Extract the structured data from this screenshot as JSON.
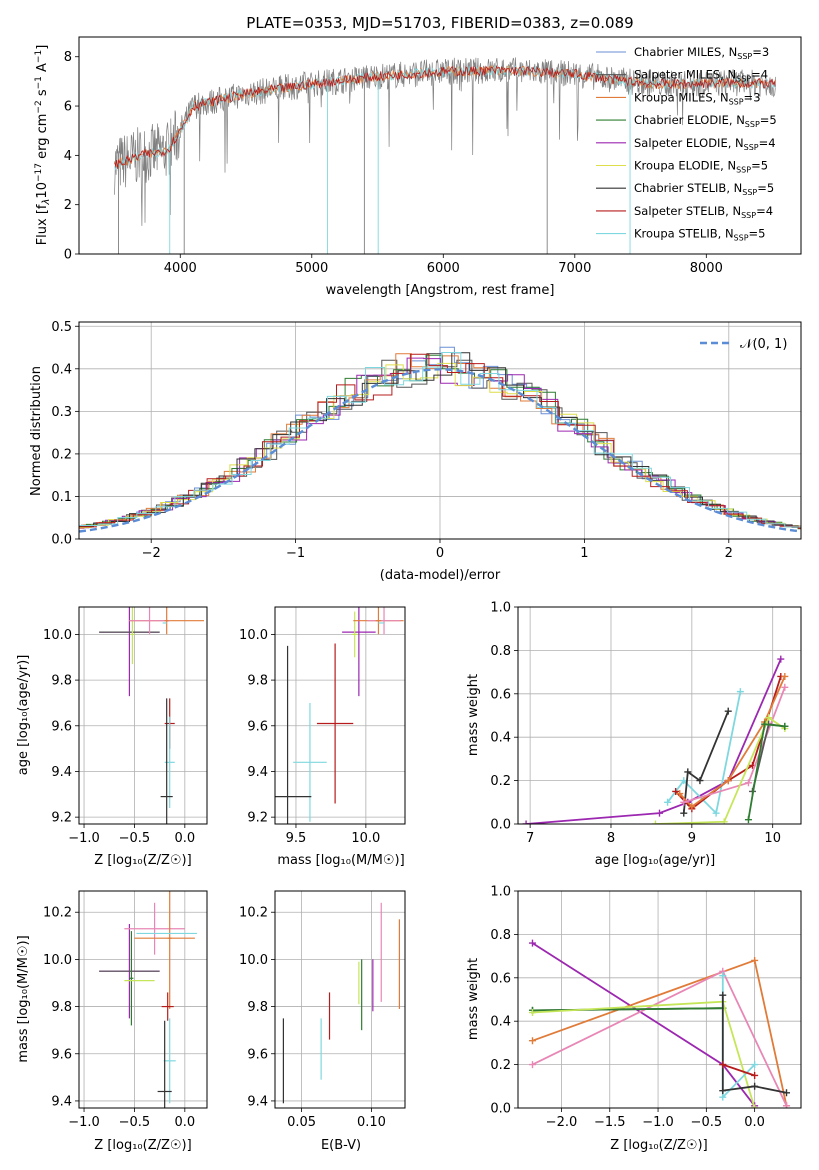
{
  "colors": {
    "Chabrier MILES": "#6a8fd6",
    "Salpeter MILES": "#555555",
    "Kroupa MILES": "#e07b39",
    "Chabrier ELODIE": "#2e7d32",
    "Salpeter ELODIE": "#9c27b0",
    "Kroupa ELODIE": "#dede4a",
    "Chabrier STELIB": "#333333",
    "Salpeter STELIB": "#b71c1c",
    "Kroupa STELIB": "#7fd8df",
    "pink": "#e887b5",
    "lime": "#c6e65a",
    "grid": "#b0b0b0",
    "spectrum": "#808080",
    "normal_curve": "#5b8dd6"
  },
  "chart_data": [
    {
      "id": "spectrum",
      "type": "line",
      "title": "PLATE=0353, MJD=51703, FIBERID=0383, z=0.089",
      "xlabel": "wavelength [Angstrom, rest frame]",
      "ylabel_main": "Flux [f",
      "ylabel_sub": "λ",
      "ylabel_rest": "10",
      "ylabel_rest_sup": "−17",
      "ylabel_tail": " erg cm",
      "ylabel_tail_sup": "−2",
      "ylabel_tail2": " s",
      "ylabel_tail2_sup": "−1",
      "ylabel_tail3": " A",
      "ylabel_tail3_sup": "−1",
      "ylabel_close": "]",
      "xlim": [
        3230,
        8720
      ],
      "ylim": [
        0,
        8.8
      ],
      "xticks": [
        4000,
        5000,
        6000,
        7000,
        8000
      ],
      "yticks": [
        0,
        2,
        4,
        6,
        8
      ],
      "continuum": [
        [
          3500,
          3.6
        ],
        [
          3700,
          4.0
        ],
        [
          3900,
          4.2
        ],
        [
          4000,
          5.0
        ],
        [
          4100,
          6.0
        ],
        [
          4500,
          6.5
        ],
        [
          5000,
          6.9
        ],
        [
          5500,
          7.2
        ],
        [
          6000,
          7.4
        ],
        [
          6500,
          7.45
        ],
        [
          7000,
          7.3
        ],
        [
          7400,
          7.0
        ],
        [
          7600,
          6.9
        ],
        [
          7900,
          6.9
        ],
        [
          8200,
          6.95
        ],
        [
          8530,
          6.9
        ]
      ],
      "legend": [
        {
          "name": "Chabrier MILES",
          "nssp": "3"
        },
        {
          "name": "Salpeter MILES",
          "nssp": "4"
        },
        {
          "name": "Kroupa MILES",
          "nssp": "3"
        },
        {
          "name": "Chabrier ELODIE",
          "nssp": "5"
        },
        {
          "name": "Salpeter ELODIE",
          "nssp": "4"
        },
        {
          "name": "Kroupa ELODIE",
          "nssp": "5"
        },
        {
          "name": "Chabrier STELIB",
          "nssp": "5"
        },
        {
          "name": "Salpeter STELIB",
          "nssp": "4"
        },
        {
          "name": "Kroupa STELIB",
          "nssp": "5"
        }
      ],
      "legend_nssp_prefix": "N",
      "legend_nssp_sub": "SSP",
      "legend_placement": "right"
    },
    {
      "id": "residuals",
      "type": "histogram",
      "xlabel": "(data-model)/error",
      "ylabel": "Normed distribution",
      "xlim": [
        -2.5,
        2.5
      ],
      "ylim": [
        0,
        0.51
      ],
      "xticks": [
        -2,
        -1,
        0,
        1,
        2
      ],
      "xticklabels": [
        "−2",
        "−1",
        "0",
        "1",
        "2"
      ],
      "yticks": [
        0,
        0.1,
        0.2,
        0.3,
        0.4,
        0.5
      ],
      "yticklabels": [
        "0.0",
        "0.1",
        "0.2",
        "0.3",
        "0.4",
        "0.5"
      ],
      "grid": true,
      "legend": "𝒩(0, 1)",
      "legend_placement": "top-right"
    },
    {
      "id": "age_vs_Z",
      "type": "errorbar",
      "xlabel": "Z [log₁₀(Z/Z☉)]",
      "ylabel": "age  [log₁₀(age/yr)]",
      "xlim": [
        -1.05,
        0.22
      ],
      "ylim": [
        9.17,
        10.12
      ],
      "xticks": [
        -1.0,
        -0.5,
        0.0
      ],
      "xticklabels": [
        "−1.0",
        "−0.5",
        "0.0"
      ],
      "yticks": [
        9.2,
        9.4,
        9.6,
        9.8,
        10.0
      ],
      "yticklabels": [
        "9.2",
        "9.4",
        "9.6",
        "9.8",
        "10.0"
      ],
      "points": [
        {
          "c": "Salpeter ELODIE",
          "x": -0.55,
          "xe": 0.3,
          "y": 10.01,
          "ye": 0.28
        },
        {
          "c": "Salpeter MILES",
          "x": -0.55,
          "xe": 0.3,
          "y": 10.01,
          "ye": 0.0
        },
        {
          "c": "lime",
          "x": -0.52,
          "xe": 0.02,
          "y": 10.0,
          "ye": 0.13
        },
        {
          "c": "Kroupa MILES",
          "x": -0.18,
          "xe": 0.37,
          "y": 10.06,
          "ye": 0.0
        },
        {
          "c": "pink",
          "x": -0.35,
          "xe": 0.2,
          "y": 10.06,
          "ye": 0.06
        },
        {
          "c": "Kroupa MILES",
          "x": -0.18,
          "xe": 0.02,
          "y": 10.06,
          "ye": 0.06
        },
        {
          "c": "Kroupa STELIB",
          "x": -0.2,
          "xe": 0.02,
          "y": 10.05,
          "ye": 0.0
        },
        {
          "c": "Salpeter STELIB",
          "x": -0.15,
          "xe": 0.05,
          "y": 9.61,
          "ye": 0.11
        },
        {
          "c": "Kroupa STELIB",
          "x": -0.15,
          "xe": 0.05,
          "y": 9.44,
          "ye": 0.2
        },
        {
          "c": "Chabrier STELIB",
          "x": -0.18,
          "xe": 0.06,
          "y": 9.29,
          "ye": 0.43
        }
      ]
    },
    {
      "id": "age_vs_mass",
      "type": "errorbar",
      "xlabel": "mass [log₁₀(M/M☉)]",
      "ylabel": "",
      "xlim": [
        9.35,
        10.28
      ],
      "ylim": [
        9.17,
        10.12
      ],
      "xticks": [
        9.5,
        10.0
      ],
      "xticklabels": [
        "9.5",
        "10.0"
      ],
      "yticks": [
        9.2,
        9.4,
        9.6,
        9.8,
        10.0
      ],
      "yticklabels": [
        "9.2",
        "9.4",
        "9.6",
        "9.8",
        "10.0"
      ],
      "points": [
        {
          "c": "Salpeter ELODIE",
          "x": 9.95,
          "xe": 0.12,
          "y": 10.01,
          "ye": 0.28
        },
        {
          "c": "lime",
          "x": 9.92,
          "xe": 0.02,
          "y": 10.0,
          "ye": 0.1
        },
        {
          "c": "Kroupa MILES",
          "x": 10.09,
          "xe": 0.18,
          "y": 10.06,
          "ye": 0.0
        },
        {
          "c": "pink",
          "x": 10.13,
          "xe": 0.12,
          "y": 10.06,
          "ye": 0.06
        },
        {
          "c": "Kroupa MILES",
          "x": 10.09,
          "xe": 0.02,
          "y": 10.06,
          "ye": 0.06
        },
        {
          "c": "Kroupa STELIB",
          "x": 10.11,
          "xe": 0.02,
          "y": 10.05,
          "ye": 0.0
        },
        {
          "c": "Salpeter STELIB",
          "x": 9.78,
          "xe": 0.13,
          "y": 9.61,
          "ye": 0.35
        },
        {
          "c": "Kroupa STELIB",
          "x": 9.6,
          "xe": 0.12,
          "y": 9.44,
          "ye": 0.26
        },
        {
          "c": "Chabrier STELIB",
          "x": 9.44,
          "xe": 0.17,
          "y": 9.29,
          "ye": 0.66
        }
      ]
    },
    {
      "id": "massweight_vs_age",
      "type": "line",
      "xlabel": "age  [log₁₀(age/yr)]",
      "ylabel": "mass weight",
      "xlim": [
        6.85,
        10.35
      ],
      "ylim": [
        0,
        1.0
      ],
      "xticks": [
        7,
        8,
        9,
        10
      ],
      "xticklabels": [
        "7",
        "8",
        "9",
        "10"
      ],
      "yticks": [
        0,
        0.2,
        0.4,
        0.6,
        0.8,
        1.0
      ],
      "yticklabels": [
        "0.0",
        "0.2",
        "0.4",
        "0.6",
        "0.8",
        "1.0"
      ],
      "series": [
        {
          "c": "Salpeter ELODIE",
          "x": [
            6.95,
            8.6,
            8.95,
            9.45,
            10.1
          ],
          "y": [
            0.0,
            0.05,
            0.1,
            0.2,
            0.76
          ]
        },
        {
          "c": "Kroupa STELIB",
          "x": [
            8.7,
            8.9,
            9.3,
            9.6
          ],
          "y": [
            0.1,
            0.2,
            0.05,
            0.61
          ]
        },
        {
          "c": "Chabrier STELIB",
          "x": [
            8.9,
            8.95,
            9.1,
            9.45
          ],
          "y": [
            0.05,
            0.24,
            0.2,
            0.52
          ]
        },
        {
          "c": "Salpeter STELIB",
          "x": [
            8.8,
            9.0,
            9.45,
            9.75,
            10.1
          ],
          "y": [
            0.15,
            0.07,
            0.2,
            0.27,
            0.68
          ]
        },
        {
          "c": "Kroupa MILES",
          "x": [
            8.85,
            9.0,
            9.45,
            9.9,
            10.15
          ],
          "y": [
            0.14,
            0.08,
            0.2,
            0.47,
            0.68
          ]
        },
        {
          "c": "pink",
          "x": [
            8.9,
            9.7,
            10.15
          ],
          "y": [
            0.1,
            0.19,
            0.63
          ]
        },
        {
          "c": "lime",
          "x": [
            8.55,
            9.4,
            9.95,
            10.15
          ],
          "y": [
            0.0,
            0.01,
            0.49,
            0.44
          ]
        },
        {
          "c": "Salpeter MILES",
          "x": [
            9.75,
            9.95,
            10.15
          ],
          "y": [
            0.15,
            0.46,
            0.45
          ]
        },
        {
          "c": "Chabrier ELODIE",
          "x": [
            9.7,
            9.9,
            10.15
          ],
          "y": [
            0.02,
            0.46,
            0.45
          ]
        }
      ]
    },
    {
      "id": "mass_vs_Z",
      "type": "errorbar",
      "xlabel": "Z [log₁₀(Z/Z☉)]",
      "ylabel": "mass [log₁₀(M/M☉)]",
      "xlim": [
        -1.05,
        0.22
      ],
      "ylim": [
        9.37,
        10.29
      ],
      "xticks": [
        -1.0,
        -0.5,
        0.0
      ],
      "xticklabels": [
        "−1.0",
        "−0.5",
        "0.0"
      ],
      "yticks": [
        9.4,
        9.6,
        9.8,
        10.0,
        10.2
      ],
      "yticklabels": [
        "9.4",
        "9.6",
        "9.8",
        "10.0",
        "10.2"
      ],
      "points": [
        {
          "c": "Salpeter ELODIE",
          "x": -0.55,
          "xe": 0.3,
          "y": 9.95,
          "ye": 0.2
        },
        {
          "c": "Salpeter MILES",
          "x": -0.55,
          "xe": 0.3,
          "y": 9.95,
          "ye": 0.0
        },
        {
          "c": "Chabrier ELODIE",
          "x": -0.53,
          "xe": 0.02,
          "y": 9.92,
          "ye": 0.2
        },
        {
          "c": "lime",
          "x": -0.45,
          "xe": 0.15,
          "y": 9.91,
          "ye": 0.0
        },
        {
          "c": "pink",
          "x": -0.3,
          "xe": 0.3,
          "y": 10.13,
          "ye": 0.11
        },
        {
          "c": "Kroupa MILES",
          "x": -0.2,
          "xe": 0.3,
          "y": 10.09,
          "ye": 0.0
        },
        {
          "c": "Kroupa MILES",
          "x": -0.15,
          "xe": 0.02,
          "y": 10.09,
          "ye": 0.3
        },
        {
          "c": "Kroupa STELIB",
          "x": -0.18,
          "xe": 0.3,
          "y": 10.11,
          "ye": 0.0
        },
        {
          "c": "Salpeter STELIB",
          "x": -0.17,
          "xe": 0.06,
          "y": 9.8,
          "ye": 0.06
        },
        {
          "c": "Kroupa STELIB",
          "x": -0.15,
          "xe": 0.06,
          "y": 9.57,
          "ye": 0.18
        },
        {
          "c": "Chabrier STELIB",
          "x": -0.2,
          "xe": 0.07,
          "y": 9.44,
          "ye": 0.3
        }
      ]
    },
    {
      "id": "mass_vs_ebv",
      "type": "errorbar",
      "xlabel": "E(B-V)",
      "ylabel": "",
      "xlim": [
        0.031,
        0.124
      ],
      "ylim": [
        9.37,
        10.29
      ],
      "xticks": [
        0.05,
        0.1
      ],
      "xticklabels": [
        "0.05",
        "0.10"
      ],
      "yticks": [
        9.4,
        9.6,
        9.8,
        10.0,
        10.2
      ],
      "yticklabels": [
        "9.4",
        "9.6",
        "9.8",
        "10.0",
        "10.2"
      ],
      "points": [
        {
          "c": "Chabrier STELIB",
          "x": 0.037,
          "xe": 0.0,
          "y": 9.57,
          "ye": 0.18
        },
        {
          "c": "Kroupa STELIB",
          "x": 0.064,
          "xe": 0.0,
          "y": 9.62,
          "ye": 0.13
        },
        {
          "c": "Salpeter STELIB",
          "x": 0.07,
          "xe": 0.0,
          "y": 9.76,
          "ye": 0.1
        },
        {
          "c": "lime",
          "x": 0.091,
          "xe": 0.0,
          "y": 9.9,
          "ye": 0.09
        },
        {
          "c": "Chabrier ELODIE",
          "x": 0.093,
          "xe": 0.0,
          "y": 9.85,
          "ye": 0.15
        },
        {
          "c": "Salpeter ELODIE",
          "x": 0.101,
          "xe": 0.0,
          "y": 9.89,
          "ye": 0.11
        },
        {
          "c": "pink",
          "x": 0.107,
          "xe": 0.0,
          "y": 10.03,
          "ye": 0.21
        },
        {
          "c": "Kroupa MILES",
          "x": 0.12,
          "xe": 0.0,
          "y": 9.98,
          "ye": 0.19
        }
      ]
    },
    {
      "id": "massweight_vs_Z",
      "type": "line",
      "xlabel": "Z [log₁₀(Z/Z☉)]",
      "ylabel": "mass weight",
      "xlim": [
        -2.45,
        0.48
      ],
      "ylim": [
        0,
        1.0
      ],
      "xticks": [
        -2.0,
        -1.5,
        -1.0,
        -0.5,
        0.0
      ],
      "xticklabels": [
        "−2.0",
        "−1.5",
        "−1.0",
        "−0.5",
        "0.0"
      ],
      "yticks": [
        0,
        0.2,
        0.4,
        0.6,
        0.8,
        1.0
      ],
      "yticklabels": [
        "0.0",
        "0.2",
        "0.4",
        "0.6",
        "0.8",
        "1.0"
      ],
      "series": [
        {
          "c": "Salpeter ELODIE",
          "x": [
            -2.3,
            -0.33,
            0.0
          ],
          "y": [
            0.76,
            0.2,
            0.01
          ]
        },
        {
          "c": "Kroupa MILES",
          "x": [
            -2.3,
            0.0,
            0.33
          ],
          "y": [
            0.31,
            0.68,
            0.01
          ]
        },
        {
          "c": "pink",
          "x": [
            -2.3,
            -0.33,
            0.33
          ],
          "y": [
            0.2,
            0.63,
            0.01
          ]
        },
        {
          "c": "Salpeter MILES",
          "x": [
            -2.3,
            -0.33
          ],
          "y": [
            0.45,
            0.46
          ]
        },
        {
          "c": "Chabrier ELODIE",
          "x": [
            -2.3,
            -0.33
          ],
          "y": [
            0.45,
            0.46
          ]
        },
        {
          "c": "lime",
          "x": [
            -2.3,
            -0.33,
            0.0
          ],
          "y": [
            0.44,
            0.49,
            0.0
          ]
        },
        {
          "c": "Kroupa STELIB",
          "x": [
            -0.33,
            -0.33,
            0.0
          ],
          "y": [
            0.61,
            0.05,
            0.2
          ]
        },
        {
          "c": "Chabrier STELIB",
          "x": [
            -0.33,
            -0.33,
            0.0,
            0.33
          ],
          "y": [
            0.52,
            0.08,
            0.1,
            0.07
          ]
        },
        {
          "c": "Salpeter STELIB",
          "x": [
            -0.33,
            0.0
          ],
          "y": [
            0.2,
            0.15
          ]
        }
      ]
    }
  ]
}
